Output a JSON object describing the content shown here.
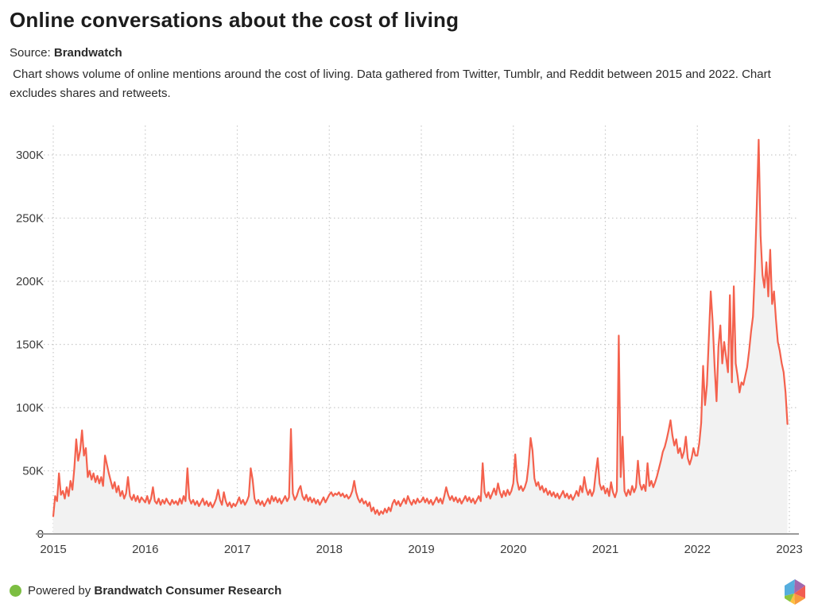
{
  "header": {
    "title": "Online conversations about the cost of living",
    "source_label": "Source:",
    "source_name": "Brandwatch",
    "description": " Chart shows volume of online mentions around the cost of living. Data gathered from Twitter, Tumblr, and Reddit between 2015 and 2022. Chart excludes shares and retweets."
  },
  "chart_data": {
    "type": "area",
    "title": "Online conversations about the cost of living",
    "xlabel": "",
    "ylabel": "",
    "value_unit": "K (thousands of online mentions per week)",
    "xlim": [
      2015,
      2023
    ],
    "ylim_k": [
      0,
      320
    ],
    "grid": true,
    "grid_style": "dotted",
    "legend": false,
    "x_ticks": [
      2015,
      2016,
      2017,
      2018,
      2019,
      2020,
      2021,
      2022,
      2023
    ],
    "y_ticks": [
      {
        "value": 0,
        "label": "0"
      },
      {
        "value": 50,
        "label": "50K"
      },
      {
        "value": 100,
        "label": "100K"
      },
      {
        "value": 150,
        "label": "150K"
      },
      {
        "value": 200,
        "label": "200K"
      },
      {
        "value": 250,
        "label": "250K"
      },
      {
        "value": 300,
        "label": "300K"
      }
    ],
    "series": [
      {
        "name": "Volume of online mentions",
        "x_start_year": 2015,
        "x_step_years": 0.0208333,
        "values_k": [
          14,
          30,
          26,
          48,
          31,
          34,
          28,
          37,
          30,
          42,
          35,
          52,
          75,
          58,
          66,
          82,
          62,
          68,
          45,
          50,
          43,
          48,
          41,
          46,
          40,
          45,
          38,
          62,
          55,
          48,
          42,
          36,
          41,
          33,
          38,
          30,
          34,
          28,
          32,
          45,
          30,
          27,
          31,
          26,
          30,
          25,
          29,
          27,
          25,
          30,
          24,
          28,
          37,
          26,
          24,
          28,
          23,
          27,
          24,
          28,
          25,
          23,
          27,
          24,
          26,
          23,
          28,
          24,
          30,
          26,
          52,
          28,
          24,
          27,
          23,
          26,
          22,
          25,
          28,
          23,
          26,
          22,
          25,
          21,
          24,
          28,
          35,
          27,
          23,
          33,
          26,
          22,
          25,
          21,
          24,
          22,
          25,
          29,
          24,
          27,
          23,
          26,
          30,
          52,
          43,
          28,
          24,
          27,
          23,
          26,
          22,
          25,
          28,
          24,
          30,
          26,
          29,
          25,
          28,
          24,
          27,
          30,
          26,
          29,
          83,
          32,
          27,
          30,
          35,
          38,
          30,
          27,
          31,
          26,
          29,
          25,
          28,
          24,
          27,
          23,
          26,
          29,
          25,
          28,
          31,
          33,
          30,
          32,
          31,
          33,
          30,
          32,
          29,
          31,
          28,
          30,
          34,
          42,
          33,
          28,
          25,
          28,
          24,
          26,
          22,
          25,
          18,
          21,
          16,
          19,
          15,
          18,
          16,
          20,
          17,
          21,
          18,
          24,
          27,
          23,
          26,
          22,
          25,
          28,
          24,
          30,
          26,
          23,
          27,
          24,
          28,
          25,
          26,
          29,
          25,
          28,
          24,
          27,
          23,
          26,
          29,
          25,
          28,
          24,
          30,
          37,
          31,
          27,
          30,
          26,
          29,
          25,
          28,
          24,
          27,
          30,
          26,
          29,
          25,
          28,
          24,
          27,
          30,
          26,
          56,
          33,
          29,
          33,
          28,
          32,
          36,
          31,
          40,
          33,
          29,
          34,
          30,
          35,
          31,
          34,
          40,
          63,
          42,
          35,
          38,
          34,
          37,
          42,
          55,
          76,
          66,
          44,
          38,
          41,
          35,
          38,
          33,
          36,
          31,
          34,
          30,
          33,
          29,
          32,
          28,
          31,
          34,
          29,
          32,
          28,
          31,
          27,
          30,
          34,
          30,
          38,
          33,
          45,
          36,
          31,
          35,
          30,
          34,
          48,
          60,
          40,
          35,
          38,
          32,
          36,
          30,
          41,
          33,
          29,
          34,
          157,
          45,
          77,
          34,
          30,
          35,
          31,
          38,
          33,
          37,
          58,
          40,
          35,
          39,
          34,
          56,
          38,
          42,
          37,
          41,
          46,
          52,
          58,
          65,
          69,
          75,
          82,
          90,
          78,
          70,
          75,
          64,
          68,
          60,
          65,
          77,
          60,
          55,
          60,
          68,
          62,
          62,
          72,
          88,
          133,
          102,
          118,
          155,
          192,
          168,
          132,
          105,
          148,
          165,
          135,
          152,
          140,
          128,
          189,
          120,
          196,
          135,
          125,
          112,
          120,
          118,
          125,
          132,
          145,
          160,
          172,
          209,
          259,
          312,
          236,
          205,
          195,
          215,
          188,
          225,
          182,
          192,
          170,
          152,
          145,
          135,
          128,
          112,
          87
        ]
      }
    ],
    "annotations": {
      "peak_value_k": 312,
      "peak_time": "late 2022",
      "notable_spikes_k": {
        "2017_mid": 83,
        "2020_spring": 76,
        "2021_spring": 157,
        "2022_peak": 312
      }
    }
  },
  "footer": {
    "powered_by_label": "Powered by",
    "brand_name": "Brandwatch Consumer Research"
  },
  "colors": {
    "line": "#f4614d",
    "area_fill": "#f2f2f2",
    "gridline": "#c9c9c9",
    "axis_line": "#9a9a9a",
    "tick_label": "#3d3d3d",
    "green_dot": "#7cbe42",
    "logo_blue": "#56aede",
    "logo_purple": "#a168ae",
    "logo_red": "#f25d52",
    "logo_orange": "#f79a3e",
    "logo_yellow": "#fdc040",
    "logo_green": "#8bc53f"
  }
}
